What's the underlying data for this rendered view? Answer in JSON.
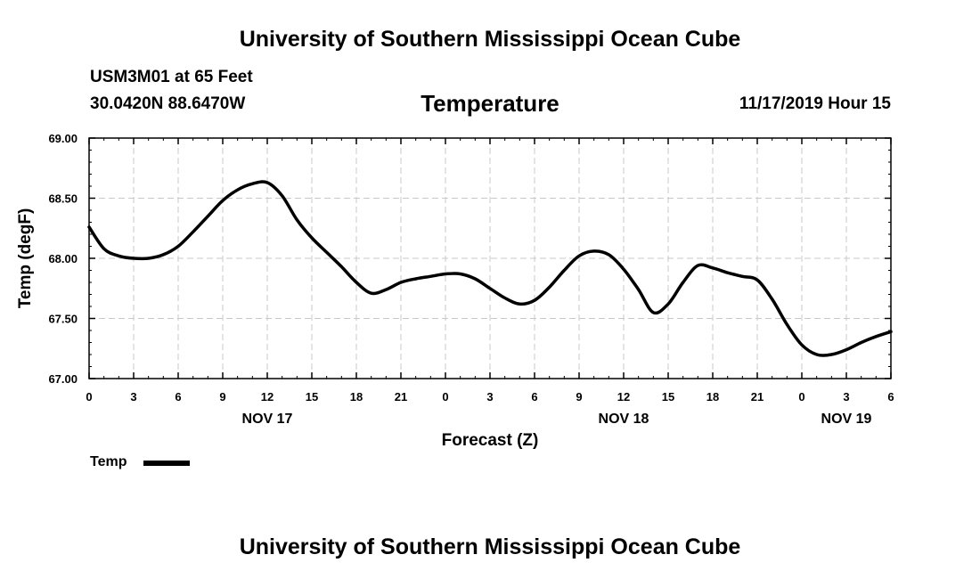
{
  "header": {
    "title": "University of Southern Mississippi Ocean Cube",
    "station": "USM3M01 at 65 Feet",
    "location": "30.0420N 88.6470W",
    "plot_title": "Temperature",
    "datetime": "11/17/2019 Hour 15"
  },
  "footer": {
    "title": "University of Southern Mississippi Ocean Cube"
  },
  "legend": {
    "label": "Temp",
    "color": "#000000"
  },
  "chart_data": {
    "type": "line",
    "title": "Temperature",
    "xlabel": "Forecast (Z)",
    "ylabel": "Temp (degF)",
    "xlim": [
      0,
      54
    ],
    "ylim": [
      67.0,
      69.0
    ],
    "grid": true,
    "legend_position": "bottom-left",
    "x_ticks": [
      0,
      3,
      6,
      9,
      12,
      15,
      18,
      21,
      24,
      27,
      30,
      33,
      36,
      39,
      42,
      45,
      48,
      51,
      54
    ],
    "x_tick_labels": [
      "0",
      "3",
      "6",
      "9",
      "12",
      "15",
      "18",
      "21",
      "0",
      "3",
      "6",
      "9",
      "12",
      "15",
      "18",
      "21",
      "0",
      "3",
      "6"
    ],
    "y_ticks": [
      67.0,
      67.5,
      68.0,
      68.5,
      69.0
    ],
    "y_tick_labels": [
      "67.00",
      "67.50",
      "68.00",
      "68.50",
      "69.00"
    ],
    "date_labels": [
      {
        "x": 12,
        "label": "NOV 17"
      },
      {
        "x": 36,
        "label": "NOV 18"
      },
      {
        "x": 51,
        "label": "NOV 19"
      }
    ],
    "series": [
      {
        "name": "Temp",
        "x": [
          0,
          1,
          2,
          3,
          4,
          5,
          6,
          7,
          8,
          9,
          10,
          11,
          12,
          13,
          14,
          15,
          16,
          17,
          18,
          19,
          20,
          21,
          22,
          23,
          24,
          25,
          26,
          27,
          28,
          29,
          30,
          31,
          32,
          33,
          34,
          35,
          36,
          37,
          38,
          39,
          40,
          41,
          42,
          43,
          44,
          45,
          46,
          47,
          48,
          49,
          50,
          51,
          52,
          53,
          54
        ],
        "values": [
          68.26,
          68.08,
          68.02,
          68.0,
          68.0,
          68.03,
          68.1,
          68.22,
          68.35,
          68.48,
          68.57,
          68.62,
          68.63,
          68.52,
          68.32,
          68.17,
          68.05,
          67.93,
          67.8,
          67.71,
          67.74,
          67.8,
          67.83,
          67.85,
          67.87,
          67.87,
          67.83,
          67.75,
          67.67,
          67.62,
          67.65,
          67.76,
          67.9,
          68.02,
          68.06,
          68.03,
          67.91,
          67.74,
          67.55,
          67.62,
          67.8,
          67.94,
          67.92,
          67.88,
          67.85,
          67.82,
          67.66,
          67.45,
          67.28,
          67.2,
          67.2,
          67.24,
          67.3,
          67.35,
          67.39
        ]
      }
    ]
  }
}
